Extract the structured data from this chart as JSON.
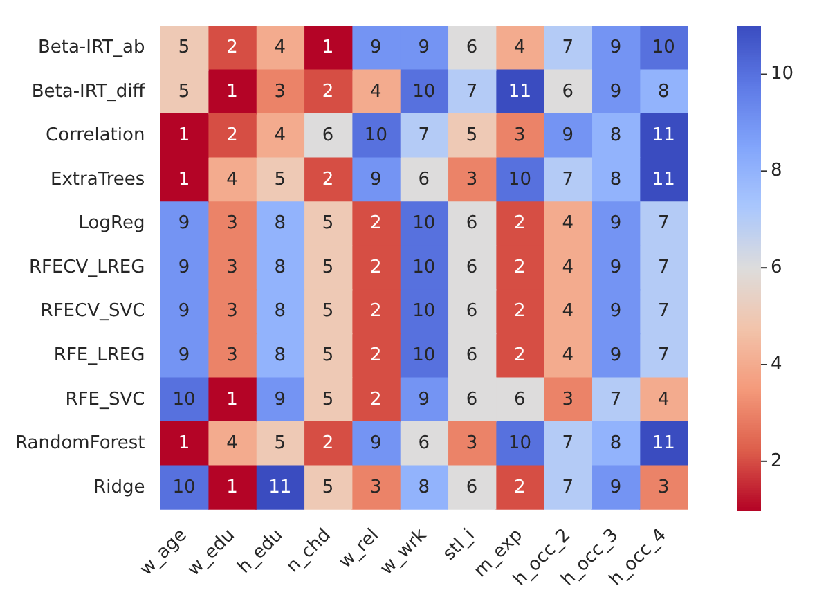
{
  "chart_data": {
    "type": "heatmap",
    "categories": [
      "w_age",
      "w_edu",
      "h_edu",
      "n_chd",
      "w_rel",
      "w_wrk",
      "stl_i",
      "m_exp",
      "h_occ_2",
      "h_occ_3",
      "h_occ_4"
    ],
    "y_categories": [
      "Beta-IRT_ab",
      "Beta-IRT_diff",
      "Correlation",
      "ExtraTrees",
      "LogReg",
      "RFECV_LREG",
      "RFECV_SVC",
      "RFE_LREG",
      "RFE_SVC",
      "RandomForest",
      "Ridge"
    ],
    "cells": [
      [
        5,
        2,
        4,
        1,
        9,
        9,
        6,
        4,
        7,
        9,
        10
      ],
      [
        5,
        1,
        3,
        2,
        4,
        10,
        7,
        11,
        6,
        9,
        8
      ],
      [
        1,
        2,
        4,
        6,
        10,
        7,
        5,
        3,
        9,
        8,
        11
      ],
      [
        1,
        4,
        5,
        2,
        9,
        6,
        3,
        10,
        7,
        8,
        11
      ],
      [
        9,
        3,
        8,
        5,
        2,
        10,
        6,
        2,
        4,
        9,
        7
      ],
      [
        9,
        3,
        8,
        5,
        2,
        10,
        6,
        2,
        4,
        9,
        7
      ],
      [
        9,
        3,
        8,
        5,
        2,
        10,
        6,
        2,
        4,
        9,
        7
      ],
      [
        9,
        3,
        8,
        5,
        2,
        10,
        6,
        2,
        4,
        9,
        7
      ],
      [
        10,
        1,
        9,
        5,
        2,
        9,
        6,
        6,
        3,
        7,
        4
      ],
      [
        1,
        4,
        5,
        2,
        9,
        6,
        3,
        10,
        7,
        8,
        11
      ],
      [
        10,
        1,
        11,
        5,
        3,
        8,
        6,
        2,
        7,
        9,
        3
      ]
    ],
    "clim": [
      1,
      11
    ],
    "cticks": [
      2,
      4,
      6,
      8,
      10
    ],
    "data_labels": true
  }
}
